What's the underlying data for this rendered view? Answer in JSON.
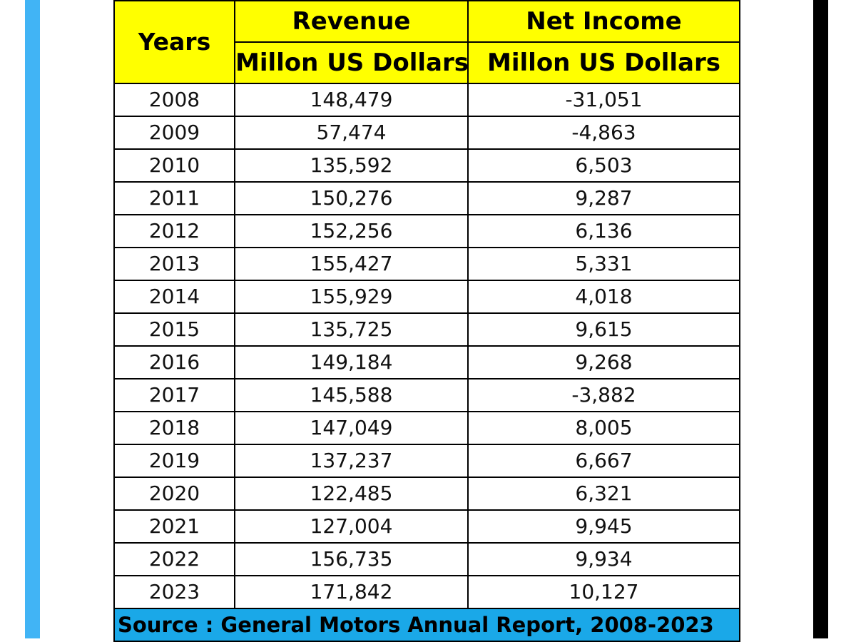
{
  "colors": {
    "left_bar": "#41b4f5",
    "right_bar": "#000000",
    "header_bg": "#ffff00",
    "footer_bg": "#1aa8e8"
  },
  "table": {
    "headers": {
      "years": "Years",
      "revenue": "Revenue",
      "revenue_unit": "Millon US Dollars",
      "net_income": "Net Income",
      "net_income_unit": "Millon US Dollars"
    },
    "rows": [
      {
        "year": "2008",
        "revenue": "148,479",
        "net_income": "-31,051"
      },
      {
        "year": "2009",
        "revenue": "57,474",
        "net_income": "-4,863"
      },
      {
        "year": "2010",
        "revenue": "135,592",
        "net_income": "6,503"
      },
      {
        "year": "2011",
        "revenue": "150,276",
        "net_income": "9,287"
      },
      {
        "year": "2012",
        "revenue": "152,256",
        "net_income": "6,136"
      },
      {
        "year": "2013",
        "revenue": "155,427",
        "net_income": "5,331"
      },
      {
        "year": "2014",
        "revenue": "155,929",
        "net_income": "4,018"
      },
      {
        "year": "2015",
        "revenue": "135,725",
        "net_income": "9,615"
      },
      {
        "year": "2016",
        "revenue": "149,184",
        "net_income": "9,268"
      },
      {
        "year": "2017",
        "revenue": "145,588",
        "net_income": "-3,882"
      },
      {
        "year": "2018",
        "revenue": "147,049",
        "net_income": "8,005"
      },
      {
        "year": "2019",
        "revenue": "137,237",
        "net_income": "6,667"
      },
      {
        "year": "2020",
        "revenue": "122,485",
        "net_income": "6,321"
      },
      {
        "year": "2021",
        "revenue": "127,004",
        "net_income": "9,945"
      },
      {
        "year": "2022",
        "revenue": "156,735",
        "net_income": "9,934"
      },
      {
        "year": "2023",
        "revenue": "171,842",
        "net_income": "10,127"
      }
    ],
    "source": "Source : General Motors Annual Report, 2008-2023"
  }
}
